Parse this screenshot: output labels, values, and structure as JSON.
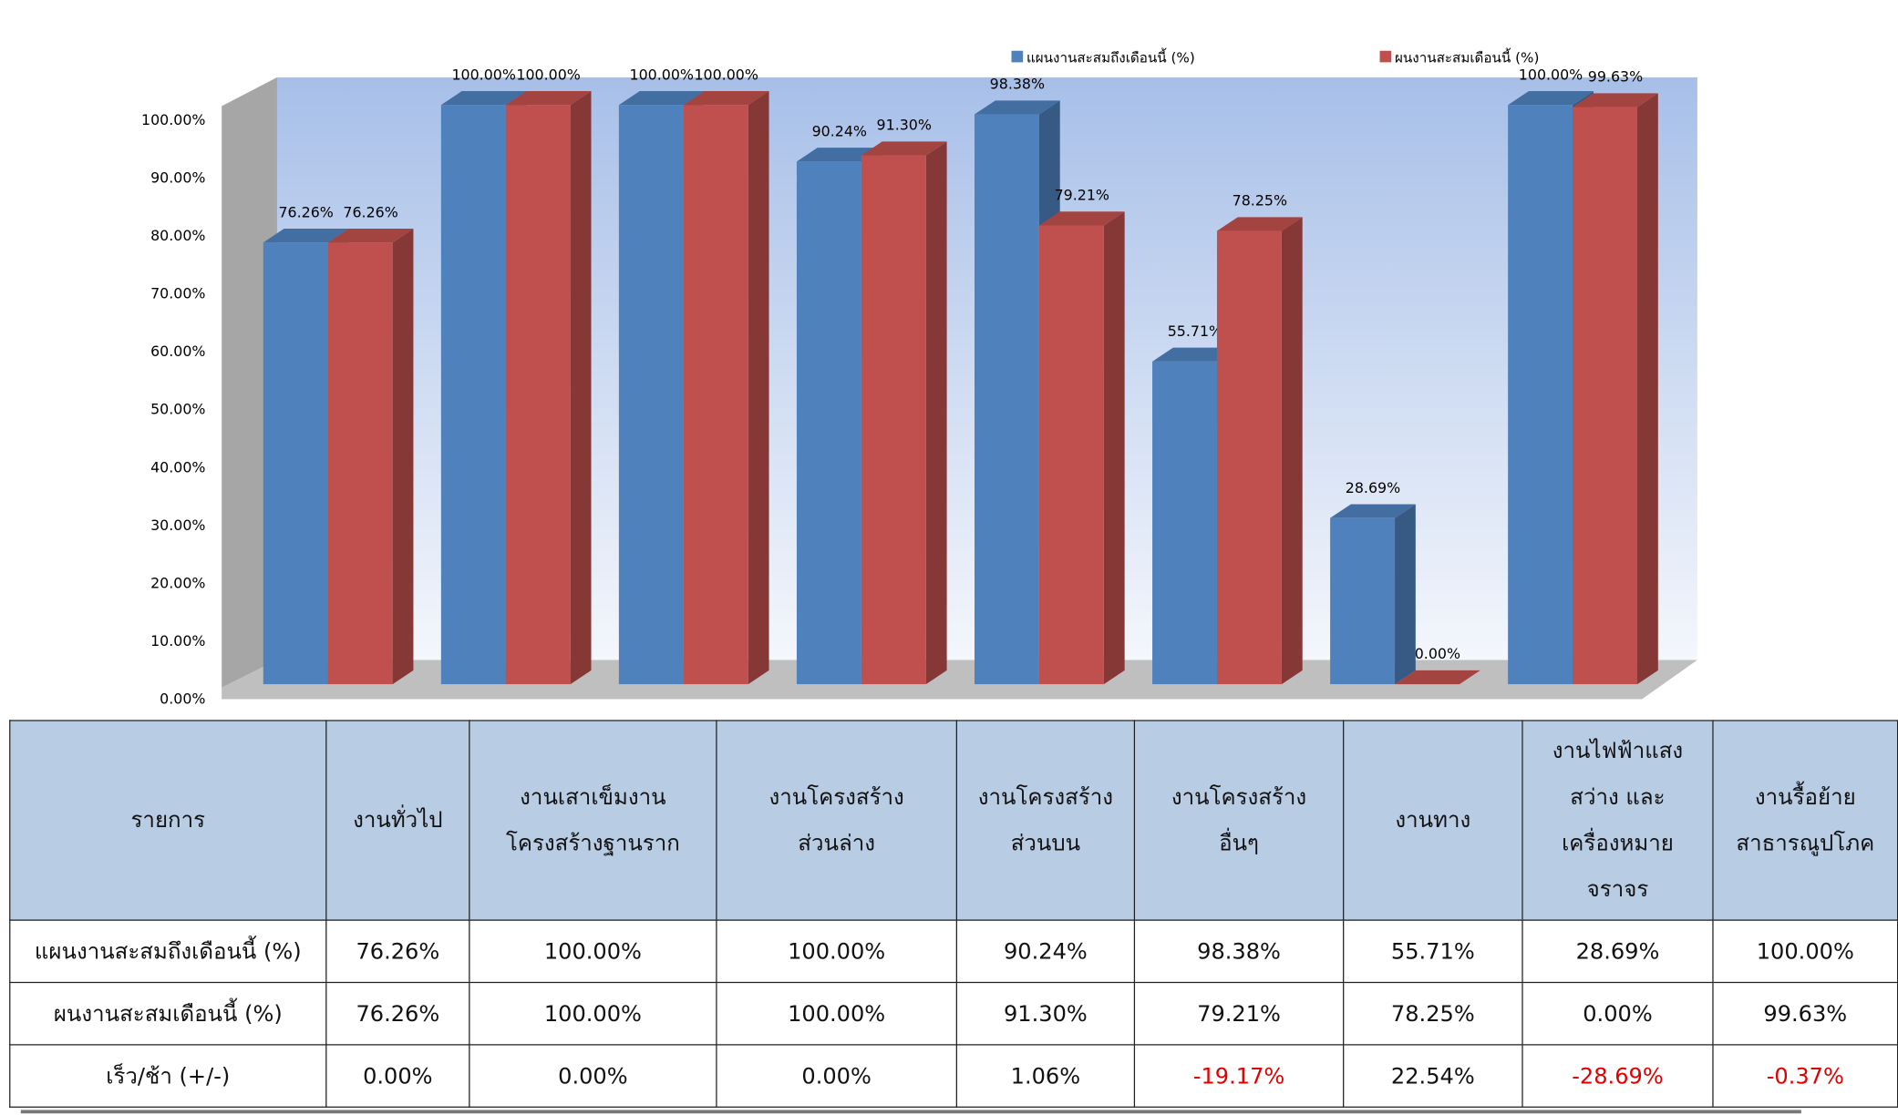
{
  "chart_data": {
    "type": "bar",
    "title": "",
    "categories": [
      "งานทั่วไป",
      "งานเสาเข็มงานโครงสร้างฐานราก",
      "งานโครงสร้างส่วนล่าง",
      "งานโครงสร้างส่วนบน",
      "งานโครงสร้างอื่นๆ",
      "งานทาง",
      "งานไฟฟ้าแสงสว่าง และเครื่องหมายจราจร",
      "งานรื้อย้ายสาธารณูปโภค"
    ],
    "series": [
      {
        "name": "แผนงานสะสมถึงเดือนนี้ (%)",
        "color": "#4f81bd",
        "values": [
          76.26,
          100.0,
          100.0,
          90.24,
          98.38,
          55.71,
          28.69,
          100.0
        ],
        "labels": [
          "76.26%",
          "100.00%",
          "100.00%",
          "90.24%",
          "98.38%",
          "55.71%",
          "28.69%",
          "100.00%"
        ]
      },
      {
        "name": "ผนงานสะสมเดือนนี้ (%)",
        "color": "#c0504d",
        "values": [
          76.26,
          100.0,
          100.0,
          91.3,
          79.21,
          78.25,
          0.0,
          99.63
        ],
        "labels": [
          "76.26%",
          "100.00%",
          "100.00%",
          "91.30%",
          "79.21%",
          "78.25%",
          "0.00%",
          "99.63%"
        ]
      }
    ],
    "ylim": [
      0,
      100
    ],
    "yticks": [
      "0.00%",
      "10.00%",
      "20.00%",
      "30.00%",
      "40.00%",
      "50.00%",
      "60.00%",
      "70.00%",
      "80.00%",
      "90.00%",
      "100.00%"
    ],
    "legend": "top-right",
    "grid": false
  },
  "table": {
    "header": [
      "รายการ",
      "งานทั่วไป",
      "งานเสาเข็มงาน\nโครงสร้างฐานราก",
      "งานโครงสร้าง\nส่วนล่าง",
      "งานโครงสร้าง\nส่วนบน",
      "งานโครงสร้าง\nอื่นๆ",
      "งานทาง",
      "งานไฟฟ้าแสง\nสว่าง และ\nเครื่องหมาย\nจราจร",
      "งานรื้อย้าย\nสาธารณูปโภค"
    ],
    "rows": [
      {
        "label": "แผนงานสะสมถึงเดือนนี้ (%)",
        "cells": [
          "76.26%",
          "100.00%",
          "100.00%",
          "90.24%",
          "98.38%",
          "55.71%",
          "28.69%",
          "100.00%"
        ]
      },
      {
        "label": "ผนงานสะสมเดือนนี้ (%)",
        "cells": [
          "76.26%",
          "100.00%",
          "100.00%",
          "91.30%",
          "79.21%",
          "78.25%",
          "0.00%",
          "99.63%"
        ]
      },
      {
        "label": "เร็ว/ช้า (+/-)",
        "cells": [
          "0.00%",
          "0.00%",
          "0.00%",
          "1.06%",
          "-19.17%",
          "22.54%",
          "-28.69%",
          "-0.37%"
        ]
      }
    ]
  }
}
